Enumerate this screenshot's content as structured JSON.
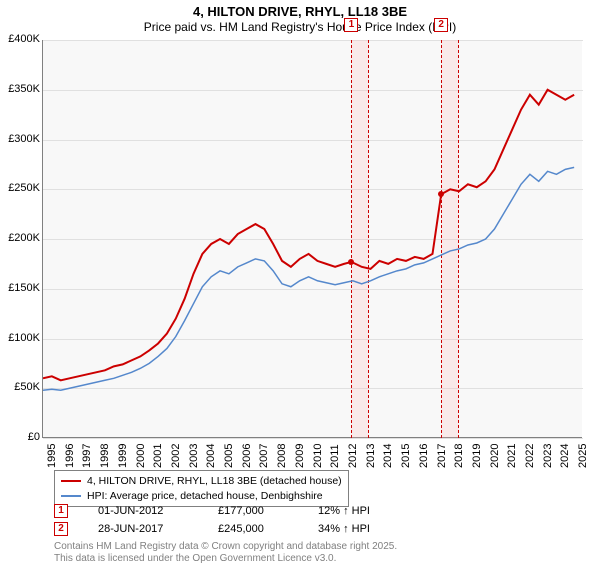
{
  "title": "4, HILTON DRIVE, RHYL, LL18 3BE",
  "subtitle": "Price paid vs. HM Land Registry's House Price Index (HPI)",
  "chart": {
    "type": "line",
    "background_color": "#f8f8f8",
    "grid_color": "#e0e0e0",
    "axis_color": "#808080",
    "x_years": [
      1995,
      1996,
      1997,
      1998,
      1999,
      2000,
      2001,
      2002,
      2003,
      2004,
      2005,
      2006,
      2007,
      2008,
      2009,
      2010,
      2011,
      2012,
      2013,
      2014,
      2015,
      2016,
      2017,
      2018,
      2019,
      2020,
      2021,
      2022,
      2023,
      2024,
      2025
    ],
    "xlim": [
      1995,
      2025.5
    ],
    "ylim": [
      0,
      400000
    ],
    "yticks": [
      0,
      50000,
      100000,
      150000,
      200000,
      250000,
      300000,
      350000,
      400000
    ],
    "ytick_labels": [
      "£0",
      "£50K",
      "£100K",
      "£150K",
      "£200K",
      "£250K",
      "£300K",
      "£350K",
      "£400K"
    ],
    "series": [
      {
        "name": "4, HILTON DRIVE, RHYL, LL18 3BE (detached house)",
        "color": "#cc0000",
        "line_width": 2,
        "points": [
          [
            1995,
            60000
          ],
          [
            1995.5,
            62000
          ],
          [
            1996,
            58000
          ],
          [
            1996.5,
            60000
          ],
          [
            1997,
            62000
          ],
          [
            1997.5,
            64000
          ],
          [
            1998,
            66000
          ],
          [
            1998.5,
            68000
          ],
          [
            1999,
            72000
          ],
          [
            1999.5,
            74000
          ],
          [
            2000,
            78000
          ],
          [
            2000.5,
            82000
          ],
          [
            2001,
            88000
          ],
          [
            2001.5,
            95000
          ],
          [
            2002,
            105000
          ],
          [
            2002.5,
            120000
          ],
          [
            2003,
            140000
          ],
          [
            2003.5,
            165000
          ],
          [
            2004,
            185000
          ],
          [
            2004.5,
            195000
          ],
          [
            2005,
            200000
          ],
          [
            2005.5,
            195000
          ],
          [
            2006,
            205000
          ],
          [
            2006.5,
            210000
          ],
          [
            2007,
            215000
          ],
          [
            2007.5,
            210000
          ],
          [
            2008,
            195000
          ],
          [
            2008.5,
            178000
          ],
          [
            2009,
            172000
          ],
          [
            2009.5,
            180000
          ],
          [
            2010,
            185000
          ],
          [
            2010.5,
            178000
          ],
          [
            2011,
            175000
          ],
          [
            2011.5,
            172000
          ],
          [
            2012,
            175000
          ],
          [
            2012.42,
            177000
          ],
          [
            2013,
            172000
          ],
          [
            2013.5,
            170000
          ],
          [
            2014,
            178000
          ],
          [
            2014.5,
            175000
          ],
          [
            2015,
            180000
          ],
          [
            2015.5,
            178000
          ],
          [
            2016,
            182000
          ],
          [
            2016.5,
            180000
          ],
          [
            2017,
            185000
          ],
          [
            2017.49,
            245000
          ],
          [
            2018,
            250000
          ],
          [
            2018.5,
            248000
          ],
          [
            2019,
            255000
          ],
          [
            2019.5,
            252000
          ],
          [
            2020,
            258000
          ],
          [
            2020.5,
            270000
          ],
          [
            2021,
            290000
          ],
          [
            2021.5,
            310000
          ],
          [
            2022,
            330000
          ],
          [
            2022.5,
            345000
          ],
          [
            2023,
            335000
          ],
          [
            2023.5,
            350000
          ],
          [
            2024,
            345000
          ],
          [
            2024.5,
            340000
          ],
          [
            2025,
            345000
          ]
        ],
        "markers": [
          {
            "x": 2012.42,
            "y": 177000
          },
          {
            "x": 2017.49,
            "y": 245000
          }
        ]
      },
      {
        "name": "HPI: Average price, detached house, Denbighshire",
        "color": "#5588cc",
        "line_width": 1.5,
        "points": [
          [
            1995,
            48000
          ],
          [
            1995.5,
            49000
          ],
          [
            1996,
            48000
          ],
          [
            1996.5,
            50000
          ],
          [
            1997,
            52000
          ],
          [
            1997.5,
            54000
          ],
          [
            1998,
            56000
          ],
          [
            1998.5,
            58000
          ],
          [
            1999,
            60000
          ],
          [
            1999.5,
            63000
          ],
          [
            2000,
            66000
          ],
          [
            2000.5,
            70000
          ],
          [
            2001,
            75000
          ],
          [
            2001.5,
            82000
          ],
          [
            2002,
            90000
          ],
          [
            2002.5,
            102000
          ],
          [
            2003,
            118000
          ],
          [
            2003.5,
            135000
          ],
          [
            2004,
            152000
          ],
          [
            2004.5,
            162000
          ],
          [
            2005,
            168000
          ],
          [
            2005.5,
            165000
          ],
          [
            2006,
            172000
          ],
          [
            2006.5,
            176000
          ],
          [
            2007,
            180000
          ],
          [
            2007.5,
            178000
          ],
          [
            2008,
            168000
          ],
          [
            2008.5,
            155000
          ],
          [
            2009,
            152000
          ],
          [
            2009.5,
            158000
          ],
          [
            2010,
            162000
          ],
          [
            2010.5,
            158000
          ],
          [
            2011,
            156000
          ],
          [
            2011.5,
            154000
          ],
          [
            2012,
            156000
          ],
          [
            2012.5,
            158000
          ],
          [
            2013,
            155000
          ],
          [
            2013.5,
            158000
          ],
          [
            2014,
            162000
          ],
          [
            2014.5,
            165000
          ],
          [
            2015,
            168000
          ],
          [
            2015.5,
            170000
          ],
          [
            2016,
            174000
          ],
          [
            2016.5,
            176000
          ],
          [
            2017,
            180000
          ],
          [
            2017.5,
            184000
          ],
          [
            2018,
            188000
          ],
          [
            2018.5,
            190000
          ],
          [
            2019,
            194000
          ],
          [
            2019.5,
            196000
          ],
          [
            2020,
            200000
          ],
          [
            2020.5,
            210000
          ],
          [
            2021,
            225000
          ],
          [
            2021.5,
            240000
          ],
          [
            2022,
            255000
          ],
          [
            2022.5,
            265000
          ],
          [
            2023,
            258000
          ],
          [
            2023.5,
            268000
          ],
          [
            2024,
            265000
          ],
          [
            2024.5,
            270000
          ],
          [
            2025,
            272000
          ]
        ]
      }
    ],
    "highlight_bands": [
      {
        "label": "1",
        "x_start": 2012.42,
        "x_end": 2013.42,
        "marker_x": 2012.42
      },
      {
        "label": "2",
        "x_start": 2017.49,
        "x_end": 2018.49,
        "marker_x": 2017.49
      }
    ]
  },
  "legend": {
    "items": [
      {
        "color": "#cc0000",
        "width": 2,
        "label": "4, HILTON DRIVE, RHYL, LL18 3BE (detached house)"
      },
      {
        "color": "#5588cc",
        "width": 1.5,
        "label": "HPI: Average price, detached house, Denbighshire"
      }
    ]
  },
  "annotations": [
    {
      "num": "1",
      "date": "01-JUN-2012",
      "price": "£177,000",
      "delta": "12% ↑ HPI"
    },
    {
      "num": "2",
      "date": "28-JUN-2017",
      "price": "£245,000",
      "delta": "34% ↑ HPI"
    }
  ],
  "footer_line1": "Contains HM Land Registry data © Crown copyright and database right 2025.",
  "footer_line2": "This data is licensed under the Open Government Licence v3.0."
}
